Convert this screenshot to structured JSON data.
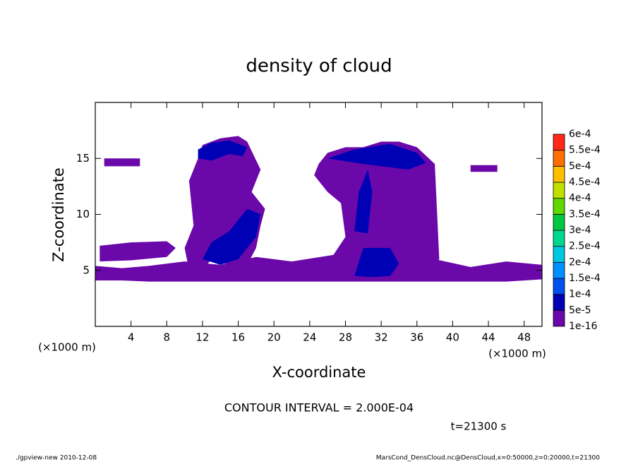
{
  "chart_data": {
    "type": "contourf",
    "title": "density of cloud",
    "xlabel": "X-coordinate",
    "ylabel": "Z-coordinate",
    "x_unit": "(×1000 m)",
    "y_unit": "(×1000 m)",
    "annotation": "CONTOUR INTERVAL = 2.000E-04",
    "time_label": "t=21300 s",
    "footer_left": "./gpview-new  2010-12-08",
    "footer_right": "MarsCond_DensCloud.nc@DensCloud,x=0:50000,z=0:20000,t=21300",
    "xlim": [
      0,
      50
    ],
    "ylim": [
      0,
      20
    ],
    "xticks": [
      4,
      8,
      12,
      16,
      20,
      24,
      28,
      32,
      36,
      40,
      44,
      48
    ],
    "yticks": [
      5,
      10,
      15
    ],
    "levels": [
      {
        "value": 1e-16,
        "label": "1e-16"
      },
      {
        "value": 5e-05,
        "label": "5e-5"
      },
      {
        "value": 0.0001,
        "label": "1e-4"
      },
      {
        "value": 0.00015,
        "label": "1.5e-4"
      },
      {
        "value": 0.0002,
        "label": "2e-4"
      },
      {
        "value": 0.00025,
        "label": "2.5e-4"
      },
      {
        "value": 0.0003,
        "label": "3e-4"
      },
      {
        "value": 0.00035,
        "label": "3.5e-4"
      },
      {
        "value": 0.0004,
        "label": "4e-4"
      },
      {
        "value": 0.00045,
        "label": "4.5e-4"
      },
      {
        "value": 0.0005,
        "label": "5e-4"
      },
      {
        "value": 0.00055,
        "label": "5.5e-4"
      },
      {
        "value": 0.0006,
        "label": "6e-4"
      }
    ],
    "colors": [
      "#6a08aa",
      "#0000b4",
      "#0050f0",
      "#0090ff",
      "#00c8e0",
      "#00d890",
      "#00c840",
      "#60d800",
      "#c0e000",
      "#ffc000",
      "#ff7000",
      "#ff2818",
      "#ff8a80"
    ],
    "regions": [
      {
        "level": 1e-16,
        "x": [
          0,
          3,
          6,
          10,
          14,
          18,
          22,
          26,
          30,
          34,
          38,
          42,
          46,
          50,
          50,
          46,
          42,
          38,
          34,
          30,
          26,
          22,
          18,
          14,
          10,
          6,
          3,
          0
        ],
        "z": [
          4.1,
          4.1,
          4.0,
          4.0,
          4.0,
          4.0,
          4.0,
          4.0,
          4.0,
          4.0,
          4.0,
          4.0,
          4.0,
          4.2,
          5.5,
          5.8,
          5.3,
          6.0,
          6.5,
          6.8,
          6.3,
          5.8,
          6.2,
          5.5,
          5.8,
          5.4,
          5.2,
          5.4
        ]
      },
      {
        "level": 1e-16,
        "x": [
          0.5,
          4,
          8,
          9,
          8,
          4,
          0.5
        ],
        "z": [
          5.8,
          5.9,
          6.2,
          7.0,
          7.6,
          7.5,
          7.2
        ]
      },
      {
        "level": 1e-16,
        "x": [
          10.5,
          12,
          13,
          15,
          17,
          18,
          18.5,
          19,
          17.5,
          18.5,
          17,
          16,
          14,
          12,
          11.5,
          10.5,
          11,
          10
        ],
        "z": [
          5,
          5,
          6,
          5.5,
          5.5,
          7,
          9,
          10.5,
          12,
          14,
          16.5,
          17,
          16.8,
          16.2,
          15,
          13,
          9,
          7
        ]
      },
      {
        "level": 1e-16,
        "x": [
          25.5,
          27,
          29,
          31,
          33,
          35,
          37,
          38.5,
          38,
          36,
          34,
          32,
          30,
          28,
          26,
          25,
          24.5,
          26,
          27.5,
          28
        ],
        "z": [
          5,
          5,
          5,
          5,
          5,
          5,
          5,
          6,
          14.5,
          16,
          16.5,
          16.5,
          16,
          16,
          15.5,
          14.5,
          13.5,
          12,
          11,
          8
        ]
      },
      {
        "level": 1e-16,
        "x": [
          42,
          45,
          45,
          42
        ],
        "z": [
          13.8,
          13.8,
          14.4,
          14.4
        ]
      },
      {
        "level": 1e-16,
        "x": [
          1,
          5,
          5,
          1
        ],
        "z": [
          14.3,
          14.3,
          15,
          15
        ]
      },
      {
        "level": 5e-05,
        "x": [
          11.5,
          13,
          15,
          16.5,
          17,
          15,
          13,
          11.5
        ],
        "z": [
          15,
          14.8,
          15.4,
          15.2,
          16,
          16.6,
          16.4,
          15.8
        ]
      },
      {
        "level": 5e-05,
        "x": [
          12,
          14,
          16,
          18,
          18.5,
          17,
          15,
          13
        ],
        "z": [
          6,
          5.5,
          6,
          8,
          10,
          10.5,
          8.5,
          7.5
        ]
      },
      {
        "level": 5e-05,
        "x": [
          26,
          30,
          33,
          35,
          37,
          36,
          33,
          29
        ],
        "z": [
          15,
          14.5,
          14.2,
          14,
          14.6,
          15.5,
          16.3,
          15.8
        ]
      },
      {
        "level": 5e-05,
        "x": [
          29,
          31,
          33,
          34,
          33,
          30
        ],
        "z": [
          4.5,
          4.4,
          4.5,
          5.6,
          7,
          7
        ]
      },
      {
        "level": 5e-05,
        "x": [
          29,
          30.5,
          31,
          30.5,
          29.5
        ],
        "z": [
          8.5,
          8.3,
          12,
          14,
          12
        ]
      }
    ]
  }
}
